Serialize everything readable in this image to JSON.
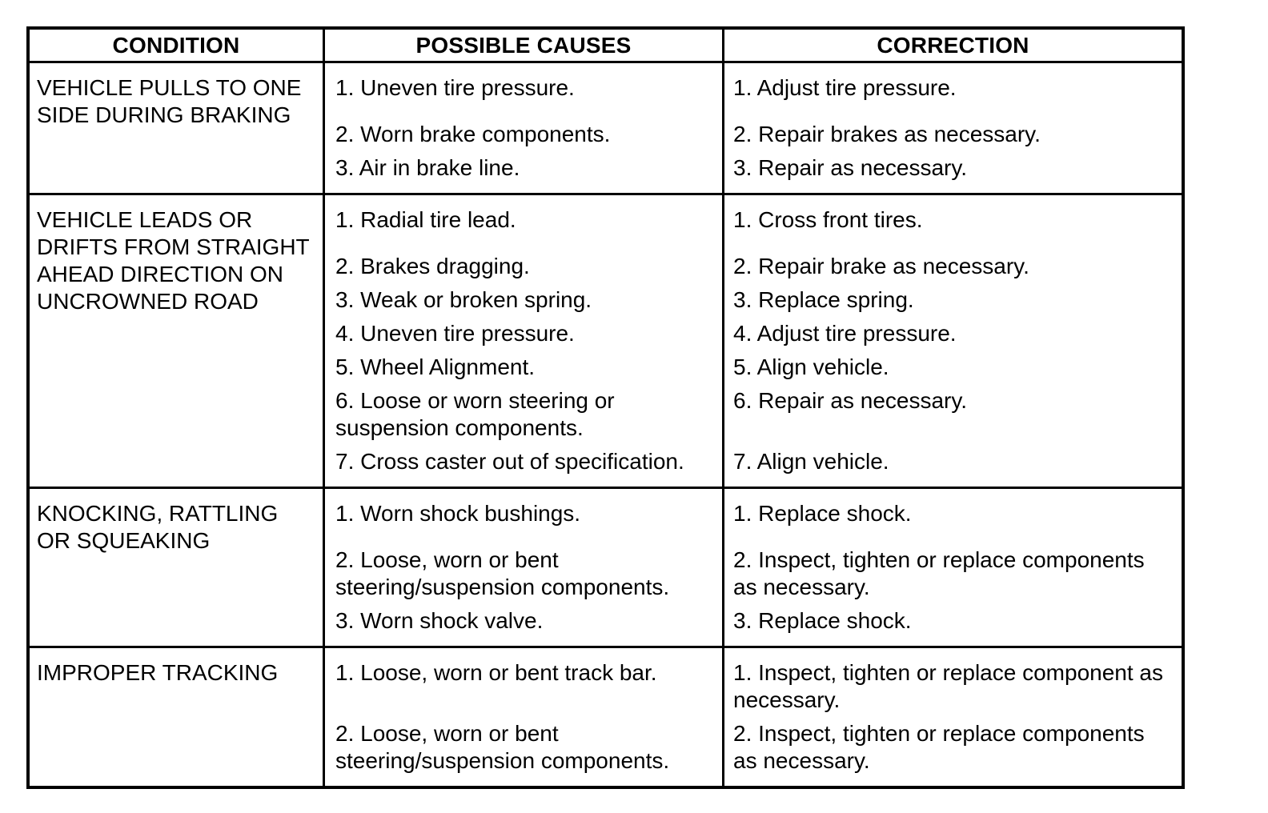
{
  "table": {
    "columns": [
      "CONDITION",
      "POSSIBLE CAUSES",
      "CORRECTION"
    ],
    "rows": [
      {
        "condition": "VEHICLE PULLS TO ONE SIDE DURING BRAKING",
        "causes": [
          "1. Uneven tire pressure.",
          "2. Worn brake components.",
          "3. Air in brake line."
        ],
        "corrections": [
          "1. Adjust tire pressure.",
          "2. Repair brakes as necessary.",
          "3. Repair as necessary."
        ]
      },
      {
        "condition": "VEHICLE LEADS OR DRIFTS FROM STRAIGHT AHEAD DIRECTION ON UNCROWNED ROAD",
        "causes": [
          "1. Radial tire lead.",
          "2. Brakes dragging.",
          "3. Weak or broken spring.",
          "4. Uneven tire pressure.",
          "5. Wheel Alignment.",
          "6. Loose or worn steering or suspension components.",
          "7. Cross caster out of specification."
        ],
        "corrections": [
          "1. Cross front tires.",
          "2. Repair brake as necessary.",
          "3. Replace spring.",
          "4. Adjust tire pressure.",
          "5. Align vehicle.",
          "6. Repair as necessary.",
          "7. Align vehicle."
        ]
      },
      {
        "condition": "KNOCKING, RATTLING OR SQUEAKING",
        "causes": [
          "1. Worn shock bushings.",
          "2. Loose, worn or bent steering/suspension components.",
          "3. Worn shock valve."
        ],
        "corrections": [
          "1. Replace shock.",
          "2. Inspect, tighten or replace components as necessary.",
          "3. Replace shock."
        ]
      },
      {
        "condition": "IMPROPER TRACKING",
        "causes": [
          "1. Loose, worn or bent track bar.",
          "2. Loose, worn or bent steering/suspension components."
        ],
        "corrections": [
          "1. Inspect, tighten or replace component as necessary.",
          "2. Inspect, tighten or replace components as necessary."
        ]
      }
    ]
  }
}
